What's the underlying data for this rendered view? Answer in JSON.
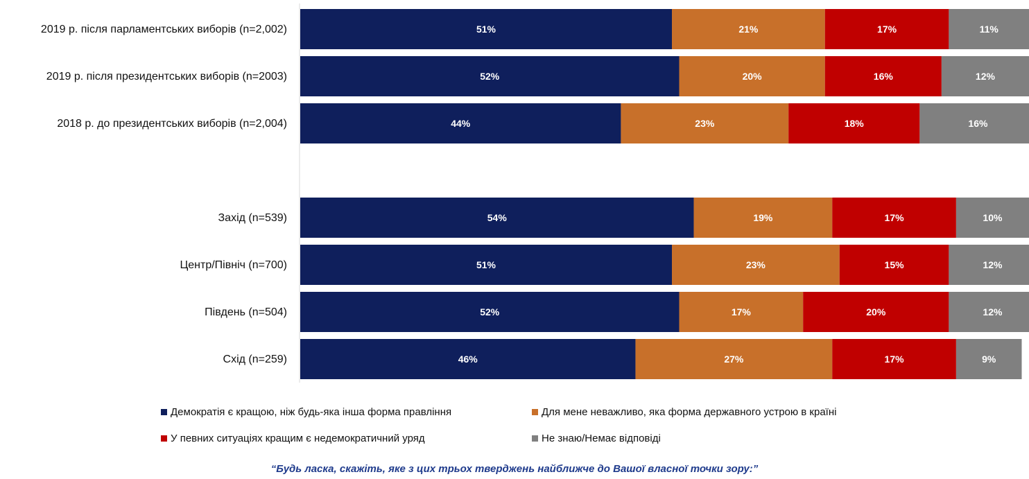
{
  "chart_data": {
    "type": "bar",
    "orientation": "horizontal",
    "stacked": true,
    "percent": true,
    "categories": [
      "2019 р. після парламентських виборів (n=2,002)",
      "2019 р. після президентських виборів (n=2003)",
      "2018 р. до президентських виборів (n=2,004)",
      "Захід (n=539)",
      "Центр/Північ (n=700)",
      "Південь (n=504)",
      "Схід (n=259)"
    ],
    "series": [
      {
        "name": "Демократія є кращою, ніж будь-яка інша форма правління",
        "color": "#0f1f5c",
        "values": [
          51,
          52,
          44,
          54,
          51,
          52,
          46
        ]
      },
      {
        "name": "Для мене неважливо, яка форма державного устрою в країні",
        "color": "#c8702a",
        "values": [
          21,
          20,
          23,
          19,
          23,
          17,
          27
        ]
      },
      {
        "name": "У певних ситуаціях кращим є недемократичний уряд",
        "color": "#c00000",
        "values": [
          17,
          16,
          18,
          17,
          15,
          20,
          17
        ]
      },
      {
        "name": "Не знаю/Немає відповіді",
        "color": "#808080",
        "values": [
          11,
          12,
          16,
          10,
          12,
          12,
          9
        ]
      }
    ],
    "data_labels": [
      [
        "51%",
        "52%",
        "44%",
        "54%",
        "51%",
        "52%",
        "46%"
      ],
      [
        "21%",
        "20%",
        "23%",
        "19%",
        "23%",
        "17%",
        "27%"
      ],
      [
        "17%",
        "16%",
        "18%",
        "17%",
        "15%",
        "20%",
        "17%"
      ],
      [
        "11%",
        "12%",
        "16%",
        "10%",
        "12%",
        "12%",
        "9%"
      ]
    ],
    "legend_position": "bottom",
    "grid": false
  },
  "question": "“Будь ласка, скажіть, яке з цих трьох тверджень найближче до Вашої власної точки зору:”"
}
